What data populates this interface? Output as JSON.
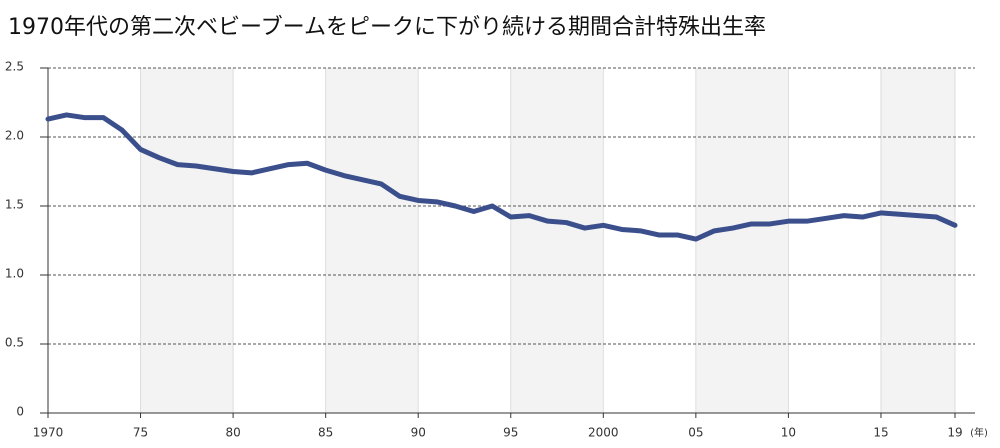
{
  "chart_data": {
    "type": "line",
    "title": "1970年代の第二次ベビーブームをピークに下がり続ける期間合計特殊出生率",
    "x_unit": "(年)",
    "x": [
      1970,
      1971,
      1972,
      1973,
      1974,
      1975,
      1976,
      1977,
      1978,
      1979,
      1980,
      1981,
      1982,
      1983,
      1984,
      1985,
      1986,
      1987,
      1988,
      1989,
      1990,
      1991,
      1992,
      1993,
      1994,
      1995,
      1996,
      1997,
      1998,
      1999,
      2000,
      2001,
      2002,
      2003,
      2004,
      2005,
      2006,
      2007,
      2008,
      2009,
      2010,
      2011,
      2012,
      2013,
      2014,
      2015,
      2016,
      2017,
      2018,
      2019
    ],
    "series": [
      {
        "color": "#3b4f8c",
        "values": [
          2.13,
          2.16,
          2.14,
          2.14,
          2.05,
          1.91,
          1.85,
          1.8,
          1.79,
          1.77,
          1.75,
          1.74,
          1.77,
          1.8,
          1.81,
          1.76,
          1.72,
          1.69,
          1.66,
          1.57,
          1.54,
          1.53,
          1.5,
          1.46,
          1.5,
          1.42,
          1.43,
          1.39,
          1.38,
          1.34,
          1.36,
          1.33,
          1.32,
          1.29,
          1.29,
          1.26,
          1.32,
          1.34,
          1.37,
          1.37,
          1.39,
          1.39,
          1.41,
          1.43,
          1.42,
          1.45,
          1.44,
          1.43,
          1.42,
          1.36
        ]
      }
    ],
    "xlim": [
      1970,
      2019
    ],
    "xticks": [
      {
        "value": 1970,
        "label": "1970"
      },
      {
        "value": 1975,
        "label": "75"
      },
      {
        "value": 1980,
        "label": "80"
      },
      {
        "value": 1985,
        "label": "85"
      },
      {
        "value": 1990,
        "label": "90"
      },
      {
        "value": 1995,
        "label": "95"
      },
      {
        "value": 2000,
        "label": "2000"
      },
      {
        "value": 2005,
        "label": "05"
      },
      {
        "value": 2010,
        "label": "10"
      },
      {
        "value": 2015,
        "label": "15"
      },
      {
        "value": 2019,
        "label": "19"
      }
    ],
    "ylim": [
      0,
      2.5
    ],
    "yticks": [
      0,
      0.5,
      {
        "value": 1,
        "label": "1.0"
      },
      {
        "value": 1.5,
        "label": "1.5"
      },
      {
        "value": 2,
        "label": "2.0"
      },
      {
        "value": 2.5,
        "label": "2.5"
      }
    ],
    "grid": true
  }
}
